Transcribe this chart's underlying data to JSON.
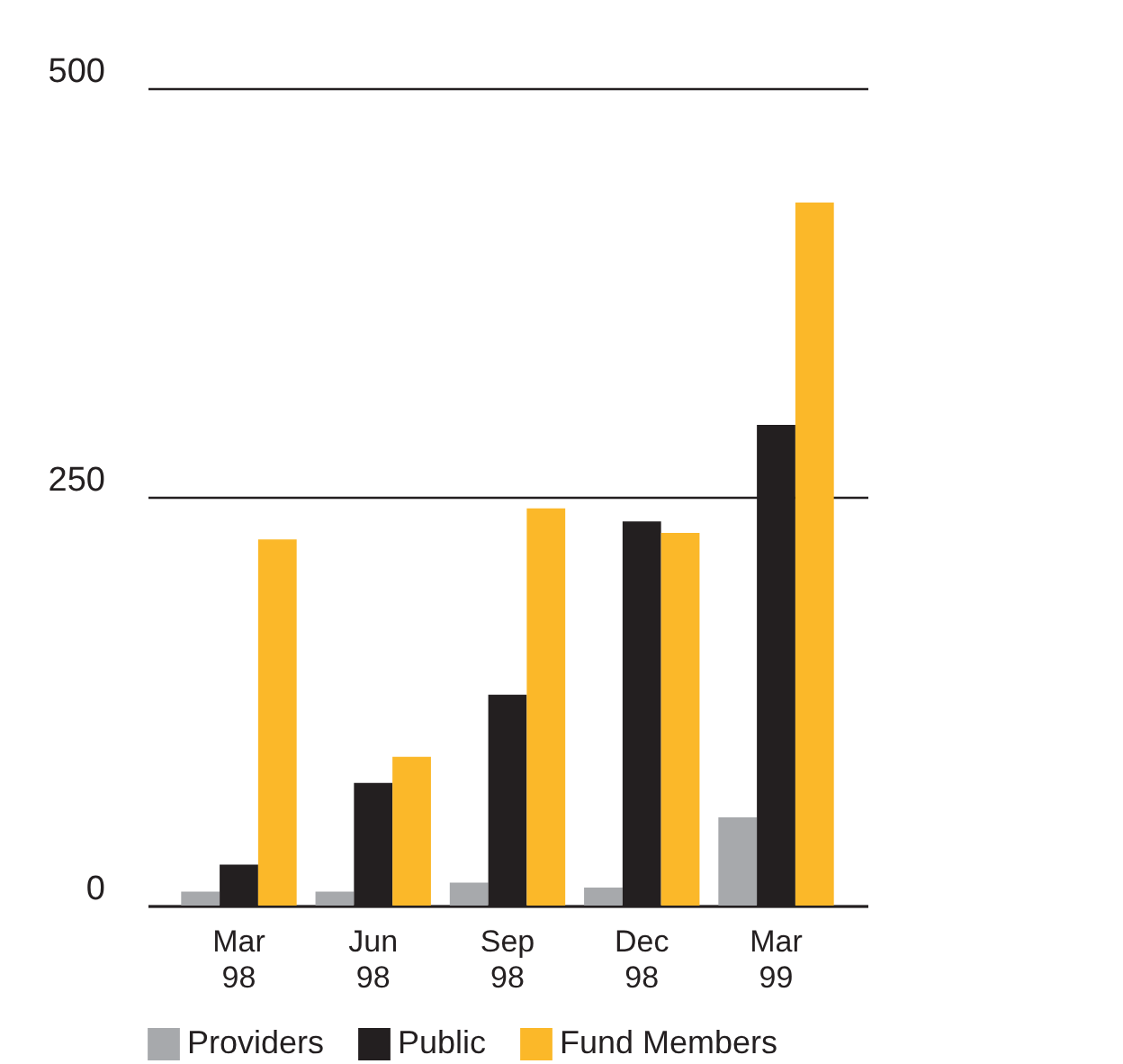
{
  "chart_data": {
    "type": "bar",
    "categories": [
      "Mar 98",
      "Jun 98",
      "Sep 98",
      "Dec 98",
      "Mar 99"
    ],
    "series": [
      {
        "name": "Providers",
        "color": "#a7a9ac",
        "values": [
          8.5,
          8.5,
          14,
          11,
          54
        ]
      },
      {
        "name": "Public",
        "color": "#231f20",
        "values": [
          25,
          75,
          129,
          235,
          294
        ]
      },
      {
        "name": "Fund Members",
        "color": "#fbb829",
        "values": [
          224,
          91,
          243,
          228,
          430
        ]
      }
    ],
    "ylim": [
      0,
      500
    ],
    "yticks": [
      0,
      250,
      500
    ],
    "grid": "y",
    "legend": "bottom"
  }
}
